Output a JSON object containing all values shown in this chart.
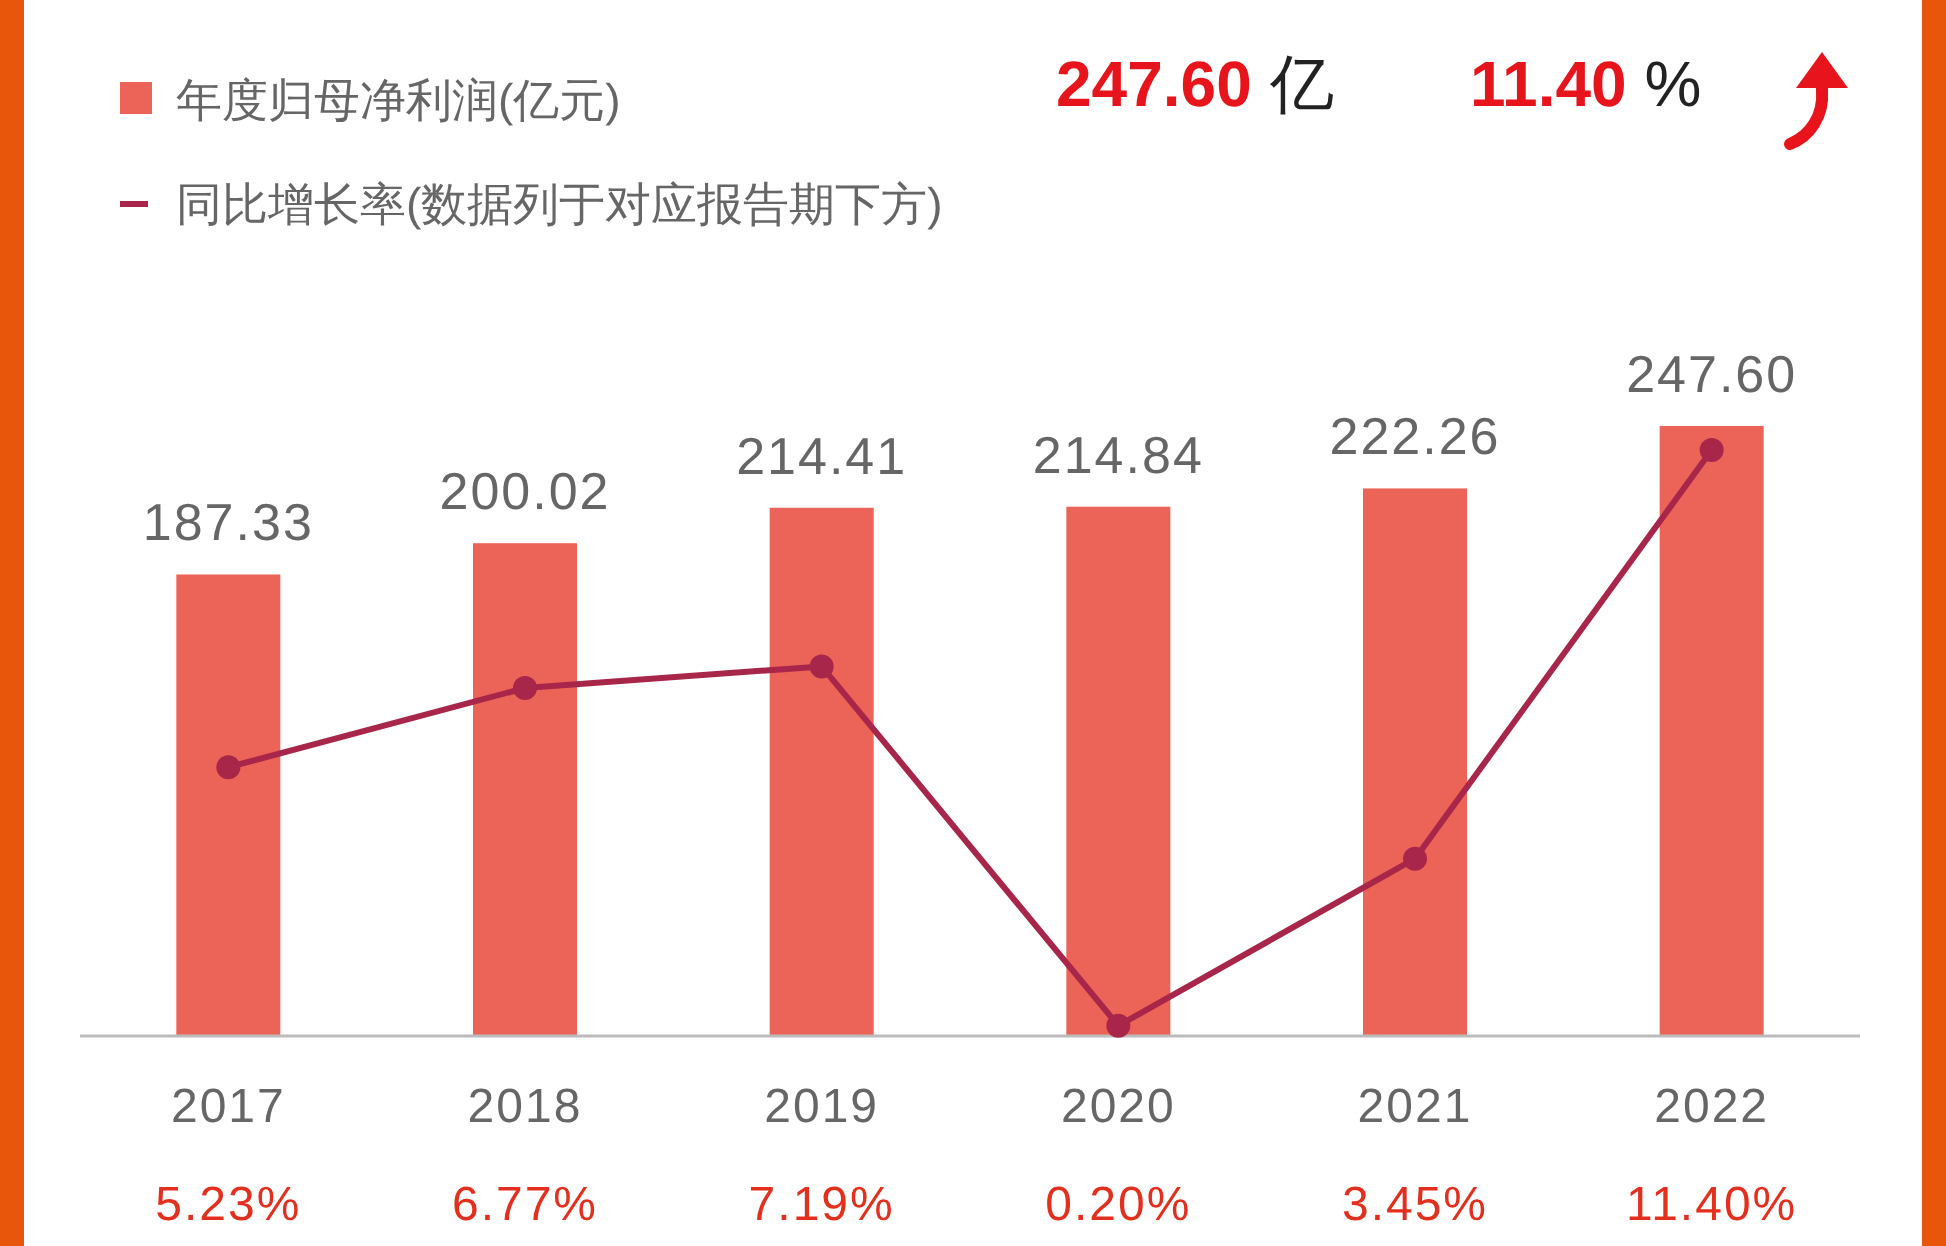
{
  "chart_data": {
    "type": "bar",
    "categories": [
      "2017",
      "2018",
      "2019",
      "2020",
      "2021",
      "2022"
    ],
    "series": [
      {
        "name": "年度归母净利润(亿元)",
        "color": "#ec6357",
        "values": [
          187.33,
          200.02,
          214.41,
          214.84,
          222.26,
          247.6
        ],
        "value_labels": [
          "187.33",
          "200.02",
          "214.41",
          "214.84",
          "222.26",
          "247.60"
        ]
      },
      {
        "name": "同比增长率(数据列于对应报告期下方)",
        "type": "line",
        "axis": "y2",
        "color": "#a8264a",
        "values": [
          5.23,
          6.77,
          7.19,
          0.2,
          3.45,
          11.4
        ],
        "value_labels": [
          "5.23%",
          "6.77%",
          "7.19%",
          "0.20%",
          "3.45%",
          "11.40%"
        ]
      }
    ],
    "tick_labels": "x",
    "legend": "top left",
    "marker": "circle",
    "line_style": "solid",
    "annotations": [
      "247.60 亿",
      "11.40 %"
    ]
  }
}
